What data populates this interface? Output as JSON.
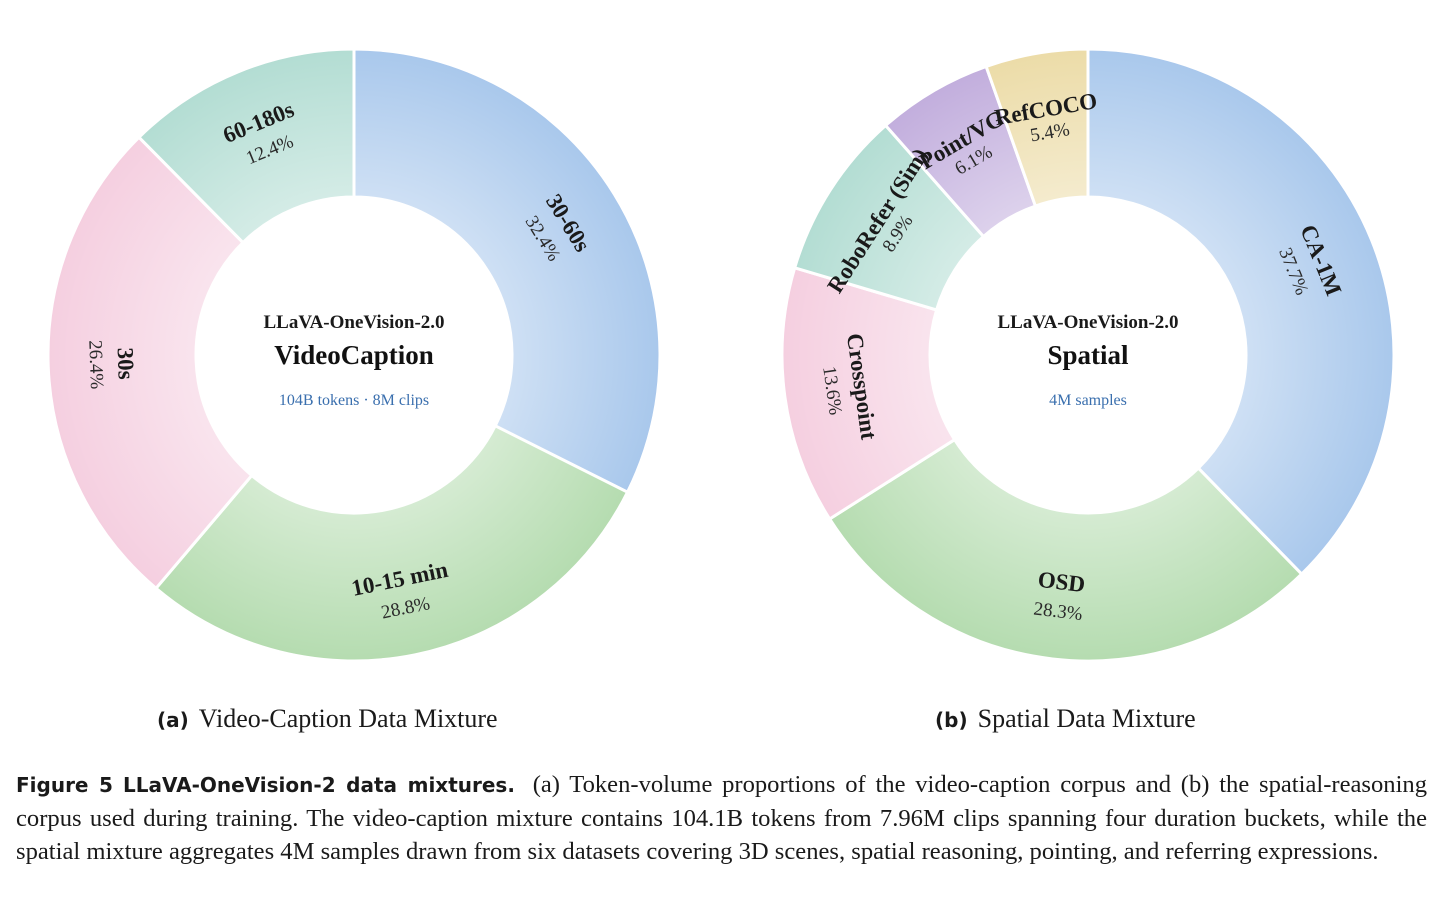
{
  "chart_data": [
    {
      "type": "pie",
      "subtype": "donut",
      "center_top": "LLaVA-OneVision-2.0",
      "center_title": "VideoCaption",
      "center_subtitle": "104B tokens · 8M clips",
      "slices": [
        {
          "label": "30-60s",
          "value": 32.4,
          "pct_label": "32.4%",
          "color": "#a9c8ec"
        },
        {
          "label": "10-15 min",
          "value": 28.8,
          "pct_label": "28.8%",
          "color": "#b5dcb0"
        },
        {
          "label": "30s",
          "value": 26.4,
          "pct_label": "26.4%",
          "color": "#f5cfe0"
        },
        {
          "label": "60-180s",
          "value": 12.4,
          "pct_label": "12.4%",
          "color": "#b3ddd3"
        }
      ]
    },
    {
      "type": "pie",
      "subtype": "donut",
      "center_top": "LLaVA-OneVision-2.0",
      "center_title": "Spatial",
      "center_subtitle": "4M samples",
      "slices": [
        {
          "label": "CA-1M",
          "value": 37.7,
          "pct_label": "37.7%",
          "color": "#a9c8ec"
        },
        {
          "label": "OSD",
          "value": 28.3,
          "pct_label": "28.3%",
          "color": "#b5dcb0"
        },
        {
          "label": "Crosspoint",
          "value": 13.6,
          "pct_label": "13.6%",
          "color": "#f5cfe0"
        },
        {
          "label": "RoboRefer (Sim)",
          "value": 8.9,
          "pct_label": "8.9%",
          "color": "#b3ddd3"
        },
        {
          "label": "Point/VG",
          "value": 6.1,
          "pct_label": "6.1%",
          "color": "#c2aedd"
        },
        {
          "label": "RefCOCO",
          "value": 5.4,
          "pct_label": "5.4%",
          "color": "#ecdca8"
        }
      ]
    }
  ],
  "subcaptions": [
    {
      "tag": "(a)",
      "text": "Video-Caption Data Mixture"
    },
    {
      "tag": "(b)",
      "text": "Spatial Data Mixture"
    }
  ],
  "caption": {
    "label": "Figure 5",
    "title": "LLaVA-OneVision-2 data mixtures.",
    "text": "(a) Token-volume proportions of the video-caption corpus and (b) the spatial-reasoning corpus used during training. The video-caption mixture contains 104.1B tokens from 7.96M clips spanning four duration buckets, while the spatial mixture aggregates 4M samples drawn from six datasets covering 3D scenes, spatial reasoning, pointing, and referring expressions."
  }
}
